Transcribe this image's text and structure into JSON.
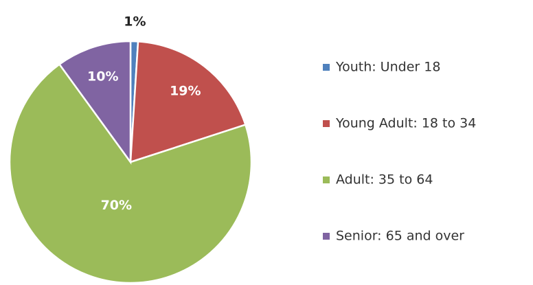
{
  "chart_data": {
    "type": "pie",
    "categories": [
      "Youth: Under 18",
      "Young Adult: 18 to 34",
      "Adult: 35 to 64",
      "Senior: 65 and over"
    ],
    "values": [
      1,
      19,
      70,
      10
    ],
    "value_labels": [
      "1%",
      "19%",
      "70%",
      "10%"
    ],
    "colors": [
      "#4f81bd",
      "#c0504d",
      "#9bbb59",
      "#8064a2"
    ],
    "legend": "right"
  }
}
